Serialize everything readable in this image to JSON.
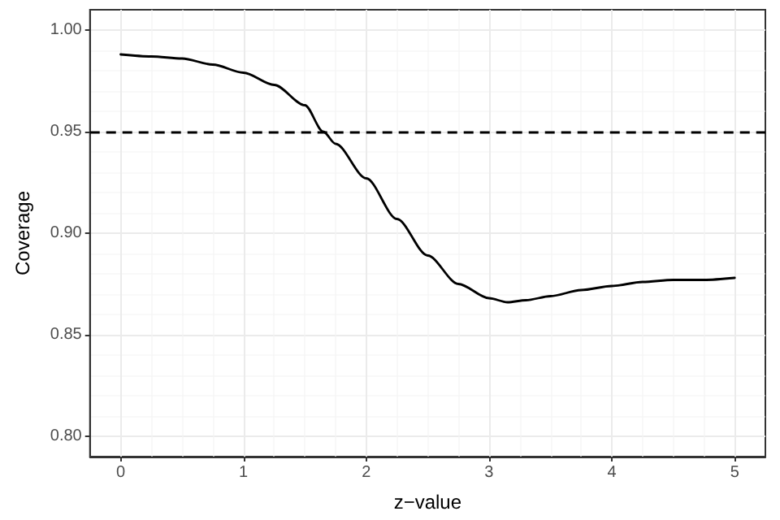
{
  "chart_data": {
    "type": "line",
    "xlabel": "z−value",
    "ylabel": "Coverage",
    "x": [
      0,
      0.25,
      0.5,
      0.75,
      1,
      1.25,
      1.5,
      1.65,
      1.75,
      2,
      2.25,
      2.5,
      2.75,
      3,
      3.15,
      3.3,
      3.5,
      3.75,
      4,
      4.25,
      4.5,
      4.75,
      5
    ],
    "series": [
      {
        "color": "#000000",
        "values": [
          0.988,
          0.987,
          0.986,
          0.983,
          0.979,
          0.973,
          0.963,
          0.95,
          0.944,
          0.927,
          0.907,
          0.889,
          0.875,
          0.868,
          0.866,
          0.867,
          0.869,
          0.872,
          0.874,
          0.876,
          0.877,
          0.877,
          0.878
        ]
      }
    ],
    "xlim": [
      -0.25,
      5.25
    ],
    "ylim": [
      0.79,
      1.01
    ],
    "xticks": [
      0,
      1,
      2,
      3,
      4,
      5
    ],
    "yticks": [
      {
        "value": 0.8,
        "label": "0.80"
      },
      {
        "value": 0.85,
        "label": "0.85"
      },
      {
        "value": 0.9,
        "label": "0.90"
      },
      {
        "value": 0.95,
        "label": "0.95"
      },
      {
        "value": 1,
        "label": "1.00"
      }
    ],
    "ref_lines": [
      {
        "axis": "y",
        "value": 0.95,
        "color": "#000000",
        "line_style": "dashed"
      }
    ],
    "grid": true,
    "marker": "none",
    "line_style": "solid"
  }
}
